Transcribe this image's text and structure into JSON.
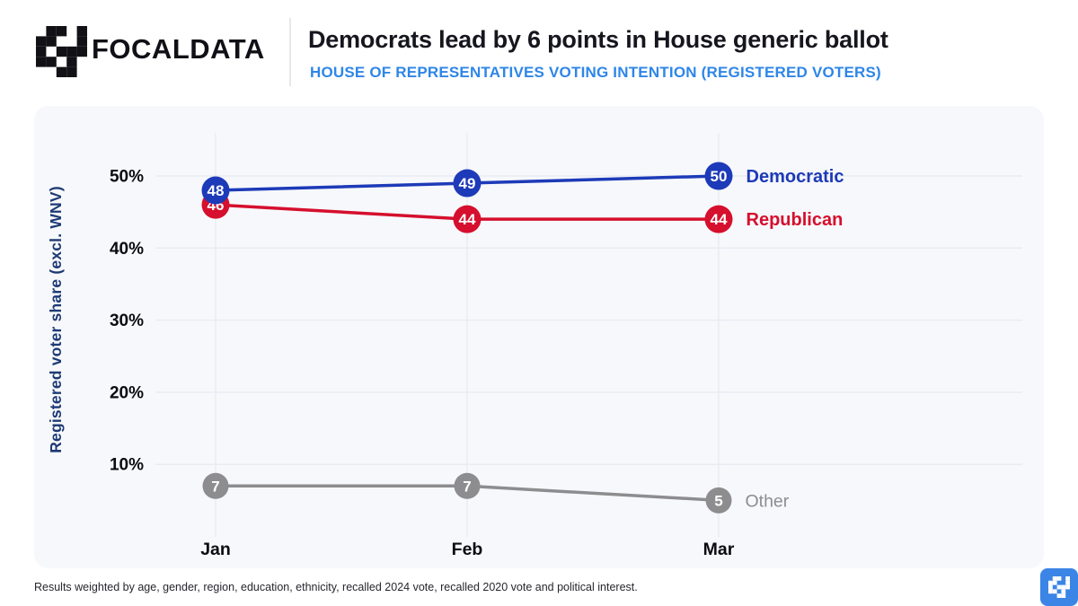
{
  "header": {
    "brand": "FOCALDATA",
    "title": "Democrats lead by 6 points in House generic ballot",
    "subtitle": "HOUSE OF REPRESENTATIVES VOTING INTENTION (REGISTERED VOTERS)"
  },
  "footer": {
    "note": "Results weighted by age, gender, region, education, ethnicity, recalled 2024 vote, recalled 2020 vote and political interest."
  },
  "colors": {
    "democratic": "#1d3ab8",
    "republican": "#d50f2d",
    "other": "#8d8d90",
    "subtitle_blue": "#2e86e8",
    "axis_label": "#1d3a75",
    "tick_label": "#0b0b10",
    "grid": "#e8ecf3",
    "panel_bg": "#f7f8fb",
    "logo_blue": "#3a85e6",
    "logo_black": "#111116"
  },
  "chart_data": {
    "type": "line",
    "title": "Democrats lead by 6 points in House generic ballot",
    "subtitle": "HOUSE OF REPRESENTATIVES VOTING INTENTION (REGISTERED VOTERS)",
    "x": [
      "Jan",
      "Feb",
      "Mar"
    ],
    "series": [
      {
        "name": "Democratic",
        "values": [
          48,
          49,
          50
        ],
        "color_key": "democratic"
      },
      {
        "name": "Republican",
        "values": [
          46,
          44,
          44
        ],
        "color_key": "republican"
      },
      {
        "name": "Other",
        "values": [
          7,
          7,
          5
        ],
        "color_key": "other"
      }
    ],
    "xlabel": "",
    "ylabel": "Registered voter share (excl. WNV)",
    "yticks": [
      10,
      20,
      30,
      40,
      50
    ],
    "ytick_format": "{v}%",
    "ylim": [
      0,
      57
    ],
    "grid": true,
    "point_labels": true,
    "legend_position": "end-of-line"
  }
}
